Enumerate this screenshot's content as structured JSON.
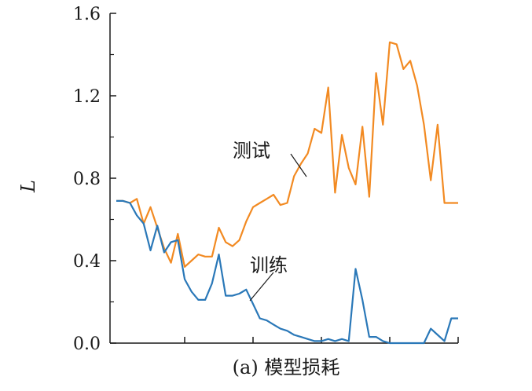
{
  "chart_data": {
    "type": "line",
    "title": "",
    "caption": "(a) 模型损耗",
    "xlabel": "",
    "ylabel": "L",
    "xlim": [
      0,
      50
    ],
    "ylim": [
      0,
      1.6
    ],
    "yticks": [
      0.0,
      0.4,
      0.8,
      1.2,
      1.6
    ],
    "ytick_labels": [
      "0.0",
      "0.4",
      "0.8",
      "1.2",
      "1.6"
    ],
    "xticks": [
      10,
      20,
      30,
      40,
      50
    ],
    "grid": false,
    "series": [
      {
        "name": "测试",
        "color": "#f28a22",
        "x": [
          0,
          1,
          2,
          3,
          4,
          5,
          6,
          7,
          8,
          9,
          10,
          11,
          12,
          13,
          14,
          15,
          16,
          17,
          18,
          19,
          20,
          21,
          22,
          23,
          24,
          25,
          26,
          27,
          28,
          29,
          30,
          31,
          32,
          33,
          34,
          35,
          36,
          37,
          38,
          39,
          40,
          41,
          42,
          43,
          44,
          45,
          46,
          47,
          48,
          49,
          50
        ],
        "values": [
          0.69,
          0.69,
          0.68,
          0.7,
          0.58,
          0.66,
          0.56,
          0.46,
          0.39,
          0.53,
          0.37,
          0.4,
          0.43,
          0.42,
          0.42,
          0.56,
          0.49,
          0.47,
          0.5,
          0.59,
          0.66,
          0.68,
          0.7,
          0.72,
          0.67,
          0.68,
          0.81,
          0.87,
          0.92,
          1.04,
          1.02,
          1.24,
          0.73,
          1.01,
          0.85,
          0.77,
          1.05,
          0.71,
          1.31,
          1.06,
          1.46,
          1.45,
          1.33,
          1.37,
          1.25,
          1.06,
          0.79,
          1.06,
          0.68,
          0.68,
          0.68
        ]
      },
      {
        "name": "训练",
        "color": "#2a78b8",
        "x": [
          0,
          1,
          2,
          3,
          4,
          5,
          6,
          7,
          8,
          9,
          10,
          11,
          12,
          13,
          14,
          15,
          16,
          17,
          18,
          19,
          20,
          21,
          22,
          23,
          24,
          25,
          26,
          27,
          28,
          29,
          30,
          31,
          32,
          33,
          34,
          35,
          36,
          37,
          38,
          39,
          40,
          41,
          42,
          43,
          44,
          45,
          46,
          47,
          48,
          49,
          50
        ],
        "values": [
          0.69,
          0.69,
          0.68,
          0.62,
          0.58,
          0.45,
          0.57,
          0.44,
          0.49,
          0.5,
          0.31,
          0.25,
          0.21,
          0.21,
          0.29,
          0.43,
          0.23,
          0.23,
          0.24,
          0.26,
          0.19,
          0.12,
          0.11,
          0.09,
          0.07,
          0.06,
          0.04,
          0.03,
          0.02,
          0.01,
          0.01,
          0.02,
          0.01,
          0.02,
          0.01,
          0.36,
          0.21,
          0.03,
          0.03,
          0.01,
          0.0,
          0.0,
          0.0,
          0.0,
          0.0,
          0.0,
          0.07,
          0.04,
          0.01,
          0.12,
          0.12
        ]
      }
    ],
    "annotations": [
      {
        "text": "测试",
        "series": "测试"
      },
      {
        "text": "训练",
        "series": "训练"
      }
    ]
  }
}
